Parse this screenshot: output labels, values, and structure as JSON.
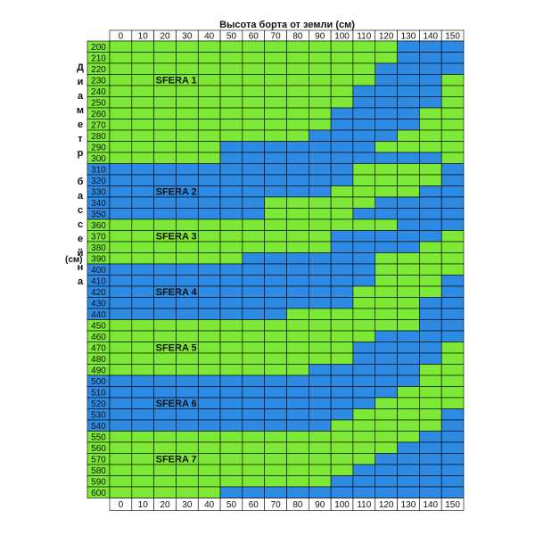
{
  "header": {
    "title": "Высота борта от земли (см)",
    "y_label": "Диаметр бассейна",
    "y_unit": "(см)"
  },
  "table": {
    "columns": [
      "0",
      "10",
      "20",
      "30",
      "40",
      "50",
      "60",
      "70",
      "80",
      "90",
      "100",
      "110",
      "120",
      "130",
      "140",
      "150"
    ],
    "palette": {
      "G": "#7ee836",
      "B": "#2e8be4"
    },
    "rows": [
      {
        "label": "200",
        "cells": "GGGGGGGGGGGGGBBB"
      },
      {
        "label": "210",
        "cells": "GGGGGGGGGGGGGBBB"
      },
      {
        "label": "220",
        "cells": "GGGGGGGGGGGGBBBB"
      },
      {
        "label": "230",
        "cells": "GGGGGGGGGGGGBBBG",
        "zone": "SFERA 1"
      },
      {
        "label": "240",
        "cells": "GGGGGGGGGGGBBBBG"
      },
      {
        "label": "250",
        "cells": "GGGGGGGGGGGBBBBG"
      },
      {
        "label": "260",
        "cells": "GGGGGGGGGGBBBBGG"
      },
      {
        "label": "270",
        "cells": "GGGGGGGGGGBBBBGG"
      },
      {
        "label": "280",
        "cells": "GGGGGGGGGBBBBGGG"
      },
      {
        "label": "290",
        "cells": "GGGGGBBBBBBBGGGG"
      },
      {
        "label": "300",
        "cells": "GGGGGBBBBBBBBBBG"
      },
      {
        "label": "310",
        "cells": "BBBBBBBBBBBGGGGB"
      },
      {
        "label": "320",
        "cells": "BBBBBBBBBBBGGGGB"
      },
      {
        "label": "330",
        "cells": "BBBBBBBBBBGGGGBB",
        "zone": "SFERA 2"
      },
      {
        "label": "340",
        "cells": "BBBBBBBGGGGGBBBB"
      },
      {
        "label": "350",
        "cells": "BBBBBBBGGGGBBBBB"
      },
      {
        "label": "360",
        "cells": "GGGGGGGGGGGGGBBB"
      },
      {
        "label": "370",
        "cells": "GGGGGGGGGGBBBBBG",
        "zone": "SFERA 3"
      },
      {
        "label": "380",
        "cells": "GGGGGGGGGGBBBBGG"
      },
      {
        "label": "390",
        "cells": "GGGGGGBBBBBBGGGG"
      },
      {
        "label": "400",
        "cells": "BBBBBBBBBBBBGGGG"
      },
      {
        "label": "410",
        "cells": "BBBBBBBBBBBBGGGB"
      },
      {
        "label": "420",
        "cells": "BBBBBBBBBBBGGGGB",
        "zone": "SFERA 4"
      },
      {
        "label": "430",
        "cells": "BBBBBBBBBBBGGGBB"
      },
      {
        "label": "440",
        "cells": "BBBBBBBBGGGGGGBB"
      },
      {
        "label": "450",
        "cells": "GGGGGGGGGGGGGGBB"
      },
      {
        "label": "460",
        "cells": "GGGGGGGGGGGGBBBB"
      },
      {
        "label": "470",
        "cells": "GGGGGGGGGGGBBBBG",
        "zone": "SFERA 5"
      },
      {
        "label": "480",
        "cells": "GGGGGGGGGGGBBBBG"
      },
      {
        "label": "490",
        "cells": "GGGGGGGGGBBBBBGG"
      },
      {
        "label": "500",
        "cells": "BBBBBBBBBBBBBBGG"
      },
      {
        "label": "510",
        "cells": "BBBBBBBBBBBBBGGG"
      },
      {
        "label": "520",
        "cells": "BBBBBBBBBBBBGGGG",
        "zone": "SFERA 6"
      },
      {
        "label": "530",
        "cells": "BBBBBBBBBBBGGGGB"
      },
      {
        "label": "540",
        "cells": "BBBBBBBBBBGGGGGB"
      },
      {
        "label": "550",
        "cells": "GGGGGGGGGGGGGGBB"
      },
      {
        "label": "560",
        "cells": "GGGGGGGGGGGGGBBB"
      },
      {
        "label": "570",
        "cells": "GGGGGGGGGGGGBBBB",
        "zone": "SFERA 7"
      },
      {
        "label": "580",
        "cells": "GGGGGGGGGGGBBBBB"
      },
      {
        "label": "590",
        "cells": "GGGGGGGGGGBBBBBB"
      },
      {
        "label": "600",
        "cells": "GGGGGBBBBBBBBBBB"
      }
    ]
  }
}
